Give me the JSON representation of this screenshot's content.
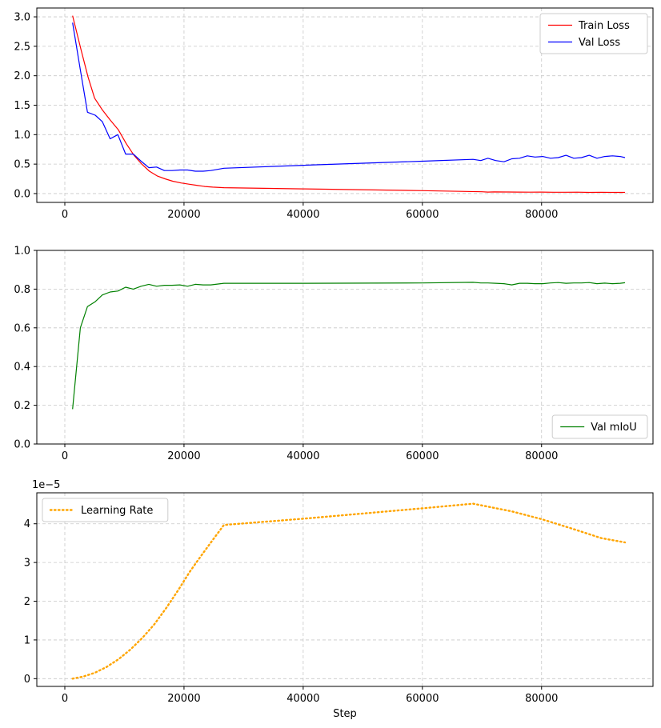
{
  "chart_data": [
    {
      "type": "line",
      "title": "",
      "xlabel": "",
      "ylabel": "",
      "xlim": [
        -4700,
        98700
      ],
      "ylim": [
        -0.15,
        3.15
      ],
      "xticks": [
        0,
        20000,
        40000,
        60000,
        80000
      ],
      "xtick_labels": [
        "0",
        "20000",
        "40000",
        "60000",
        "80000"
      ],
      "yticks": [
        0.0,
        0.5,
        1.0,
        1.5,
        2.0,
        2.5,
        3.0
      ],
      "ytick_labels": [
        "0.0",
        "0.5",
        "1.0",
        "1.5",
        "2.0",
        "2.5",
        "3.0"
      ],
      "grid": true,
      "legend_position": "top-right",
      "series": [
        {
          "name": "Train Loss",
          "color": "#ff0000",
          "style": "solid",
          "x": [
            1300,
            2700,
            3900,
            5000,
            6300,
            7600,
            9000,
            10300,
            11600,
            12900,
            14200,
            15500,
            16800,
            18100,
            19500,
            20800,
            22100,
            23500,
            24800,
            26700,
            40000,
            60000,
            70000,
            71000,
            72000,
            74000,
            76000,
            78000,
            80000,
            82000,
            84000,
            86000,
            88000,
            90000,
            92000,
            94000
          ],
          "y": [
            3.02,
            2.45,
            1.98,
            1.62,
            1.42,
            1.25,
            1.08,
            0.85,
            0.65,
            0.5,
            0.38,
            0.3,
            0.25,
            0.21,
            0.18,
            0.16,
            0.14,
            0.12,
            0.11,
            0.1,
            0.08,
            0.05,
            0.03,
            0.025,
            0.028,
            0.026,
            0.025,
            0.024,
            0.025,
            0.023,
            0.022,
            0.024,
            0.02,
            0.022,
            0.02,
            0.02
          ]
        },
        {
          "name": "Val Loss",
          "color": "#0000ff",
          "style": "solid",
          "x": [
            1300,
            2600,
            3800,
            5100,
            6300,
            7600,
            8900,
            10200,
            11500,
            12800,
            14100,
            15400,
            16700,
            18000,
            19300,
            20600,
            21900,
            23200,
            24500,
            26700,
            40000,
            60000,
            68500,
            69800,
            71000,
            72300,
            73700,
            75000,
            76300,
            77600,
            78900,
            80200,
            81500,
            82800,
            84100,
            85400,
            86700,
            88000,
            89300,
            90600,
            91900,
            93200,
            94000
          ],
          "y": [
            2.9,
            2.1,
            1.38,
            1.33,
            1.22,
            0.93,
            1.0,
            0.67,
            0.67,
            0.55,
            0.44,
            0.45,
            0.39,
            0.39,
            0.4,
            0.4,
            0.38,
            0.38,
            0.39,
            0.43,
            0.48,
            0.55,
            0.58,
            0.56,
            0.6,
            0.56,
            0.54,
            0.59,
            0.6,
            0.64,
            0.62,
            0.63,
            0.6,
            0.61,
            0.65,
            0.6,
            0.61,
            0.65,
            0.6,
            0.63,
            0.64,
            0.63,
            0.61
          ]
        }
      ]
    },
    {
      "type": "line",
      "title": "",
      "xlabel": "",
      "ylabel": "",
      "xlim": [
        -4700,
        98700
      ],
      "ylim": [
        0.0,
        1.0
      ],
      "xticks": [
        0,
        20000,
        40000,
        60000,
        80000
      ],
      "xtick_labels": [
        "0",
        "20000",
        "40000",
        "60000",
        "80000"
      ],
      "yticks": [
        0.0,
        0.2,
        0.4,
        0.6,
        0.8,
        1.0
      ],
      "ytick_labels": [
        "0.0",
        "0.2",
        "0.4",
        "0.6",
        "0.8",
        "1.0"
      ],
      "grid": true,
      "legend_position": "bottom-right",
      "series": [
        {
          "name": "Val mIoU",
          "color": "#008000",
          "style": "solid",
          "x": [
            1300,
            2600,
            3800,
            5100,
            6300,
            7600,
            8900,
            10200,
            11500,
            12800,
            14100,
            15400,
            16700,
            18000,
            19300,
            20600,
            21900,
            23200,
            24500,
            26700,
            40000,
            60000,
            68500,
            69800,
            71000,
            72300,
            73700,
            75000,
            76300,
            77600,
            78900,
            80200,
            81500,
            82800,
            84100,
            85400,
            86700,
            88000,
            89300,
            90600,
            91900,
            93200,
            94000
          ],
          "y": [
            0.18,
            0.6,
            0.71,
            0.735,
            0.77,
            0.785,
            0.79,
            0.81,
            0.8,
            0.815,
            0.825,
            0.815,
            0.82,
            0.82,
            0.822,
            0.815,
            0.825,
            0.822,
            0.822,
            0.83,
            0.83,
            0.832,
            0.835,
            0.832,
            0.832,
            0.83,
            0.828,
            0.822,
            0.83,
            0.83,
            0.828,
            0.828,
            0.832,
            0.834,
            0.83,
            0.832,
            0.832,
            0.834,
            0.828,
            0.831,
            0.828,
            0.83,
            0.833
          ]
        }
      ]
    },
    {
      "type": "line",
      "title": "",
      "xlabel": "Step",
      "ylabel": "",
      "offset_text": "1e−5",
      "xlim": [
        -4700,
        98700
      ],
      "ylim": [
        -2e-06,
        4.8e-05
      ],
      "xticks": [
        0,
        20000,
        40000,
        60000,
        80000
      ],
      "xtick_labels": [
        "0",
        "20000",
        "40000",
        "60000",
        "80000"
      ],
      "yticks": [
        0,
        1e-05,
        2e-05,
        3e-05,
        4e-05
      ],
      "ytick_labels": [
        "0",
        "1",
        "2",
        "3",
        "4"
      ],
      "grid": true,
      "legend_position": "top-left",
      "series": [
        {
          "name": "Learning Rate",
          "color": "#ffa500",
          "style": "dotted",
          "x": [
            1300,
            3000,
            5000,
            7000,
            9000,
            11000,
            13000,
            15000,
            17000,
            19000,
            21000,
            23000,
            25000,
            26700,
            40000,
            60000,
            68500,
            75000,
            80000,
            85000,
            90000,
            94000
          ],
          "y": [
            0,
            5e-07,
            1.5e-06,
            3e-06,
            5e-06,
            7.5e-06,
            1.05e-05,
            1.4e-05,
            1.82e-05,
            2.28e-05,
            2.77e-05,
            3.2e-05,
            3.62e-05,
            3.97e-05,
            4.13e-05,
            4.4e-05,
            4.52e-05,
            4.32e-05,
            4.12e-05,
            3.88e-05,
            3.63e-05,
            3.52e-05
          ]
        }
      ]
    }
  ]
}
